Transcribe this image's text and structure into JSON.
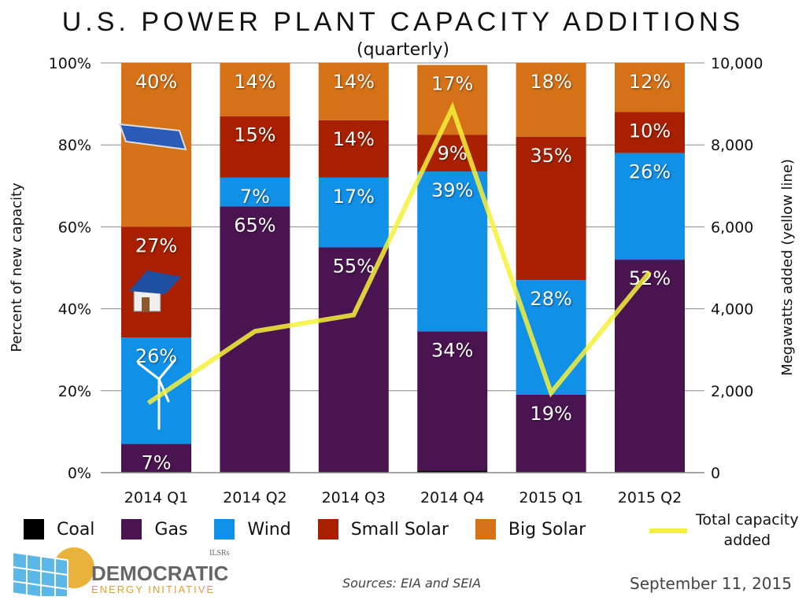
{
  "chart_data": {
    "type": "bar",
    "stacked": true,
    "title": "U.S. POWER PLANT CAPACITY ADDITIONS",
    "subtitle": "(quarterly)",
    "ylabel": "Percent of new capacity",
    "y2label": "Megawatts added (yellow line)",
    "ylim": [
      0,
      100
    ],
    "y2lim": [
      0,
      10000
    ],
    "yticks": [
      "0%",
      "20%",
      "40%",
      "60%",
      "80%",
      "100%"
    ],
    "y2ticks": [
      "0",
      "2,000",
      "4,000",
      "6,000",
      "8,000",
      "10,000"
    ],
    "grid": true,
    "categories": [
      "2014 Q1",
      "2014 Q2",
      "2014 Q3",
      "2014 Q4",
      "2015 Q1",
      "2015 Q2"
    ],
    "series": [
      {
        "name": "Coal",
        "color": "#000000",
        "values": [
          0,
          0,
          0,
          0.5,
          0,
          0
        ],
        "labels": [
          "",
          "",
          "",
          "",
          "",
          ""
        ]
      },
      {
        "name": "Gas",
        "color": "#4a1450",
        "values": [
          7,
          65,
          55,
          34,
          19,
          52
        ],
        "labels": [
          "7%",
          "65%",
          "55%",
          "34%",
          "19%",
          "52%"
        ]
      },
      {
        "name": "Wind",
        "color": "#1190e8",
        "values": [
          26,
          7,
          17,
          39,
          28,
          26
        ],
        "labels": [
          "26%",
          "7%",
          "17%",
          "39%",
          "28%",
          "26%"
        ]
      },
      {
        "name": "Small Solar",
        "color": "#a82000",
        "values": [
          27,
          15,
          14,
          9,
          35,
          10
        ],
        "labels": [
          "27%",
          "15%",
          "14%",
          "9%",
          "35%",
          "10%"
        ]
      },
      {
        "name": "Big Solar",
        "color": "#d57218",
        "values": [
          40,
          14,
          14,
          17,
          18,
          12
        ],
        "labels": [
          "40%",
          "14%",
          "14%",
          "17%",
          "18%",
          "12%"
        ]
      }
    ],
    "line": {
      "name": "Total capacity added",
      "color": "#f4f13a",
      "axis": "right",
      "values": [
        1700,
        3450,
        3850,
        8900,
        1950,
        4900
      ]
    },
    "legend_position": "bottom"
  },
  "legend": {
    "line_label_1": "Total capacity",
    "line_label_2": "added"
  },
  "footer": {
    "sources": "Sources: EIA and SEIA",
    "date": "September 11, 2015"
  },
  "logo": {
    "name": "DEMOCRATIC",
    "sub": "ENERGY INITIATIVE",
    "badge": "ILSRs"
  }
}
